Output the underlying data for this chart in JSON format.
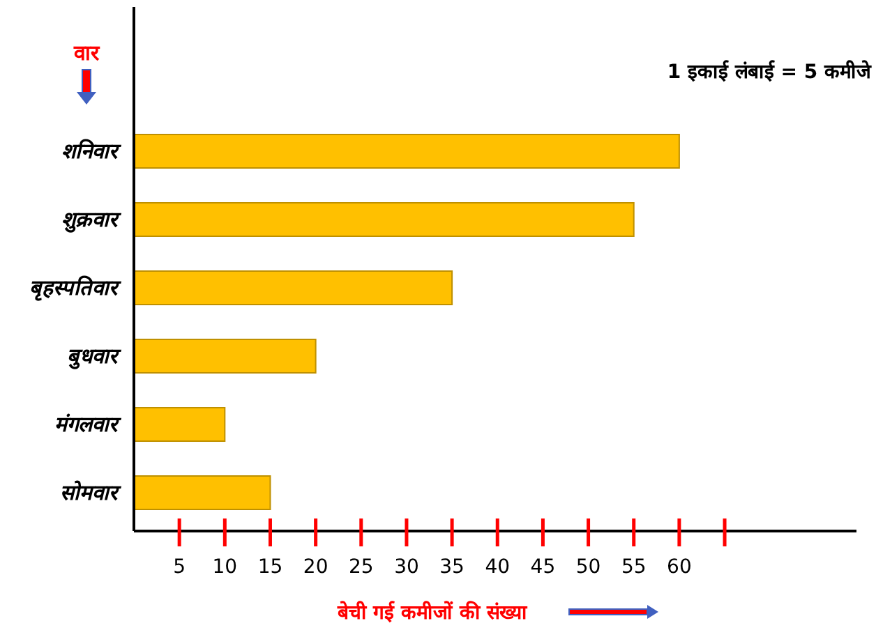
{
  "chart_data": {
    "type": "bar",
    "orientation": "horizontal",
    "xlabel": "बेची गई कमीजों की संख्या",
    "ylabel": "वार",
    "annotations": [
      "1 इकाई लंबाई = 5 कमीजे"
    ],
    "categories": [
      "शनिवार",
      "शुक्रवार",
      "बृहस्पतिवार",
      "बुधवार",
      "मंगलवार",
      "सोमवार"
    ],
    "values": [
      60,
      55,
      35,
      20,
      10,
      15
    ],
    "color": "#ffc000",
    "xlim": [
      0,
      79.5
    ],
    "xticks": [
      5,
      10,
      15,
      20,
      25,
      30,
      35,
      40,
      45,
      50,
      55,
      60,
      {
        "value": 65,
        "label": null
      }
    ],
    "grid": false
  }
}
